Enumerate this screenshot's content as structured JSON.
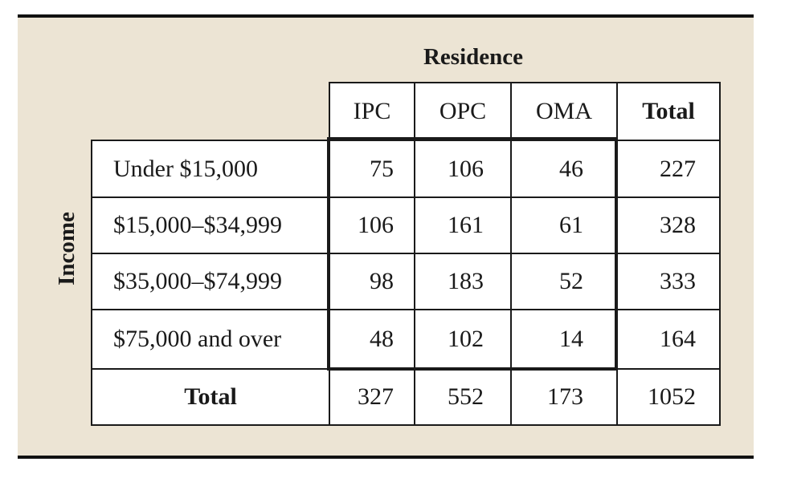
{
  "table": {
    "column_group_label": "Residence",
    "row_group_label": "Income",
    "column_headers": [
      "IPC",
      "OPC",
      "OMA",
      "Total"
    ],
    "rows": [
      {
        "label": "Under $15,000",
        "values": [
          "75",
          "106",
          "46"
        ],
        "total": "227"
      },
      {
        "label": "$15,000–$34,999",
        "values": [
          "106",
          "161",
          "61"
        ],
        "total": "328"
      },
      {
        "label": "$35,000–$74,999",
        "values": [
          "98",
          "183",
          "52"
        ],
        "total": "333"
      },
      {
        "label": "$75,000 and over",
        "values": [
          "48",
          "102",
          "14"
        ],
        "total": "164"
      }
    ],
    "total_row": {
      "label": "Total",
      "values": [
        "327",
        "552",
        "173"
      ],
      "total": "1052"
    }
  },
  "colors": {
    "panel_background": "#ece4d4",
    "cell_background": "#ffffff",
    "rule": "#111111"
  }
}
